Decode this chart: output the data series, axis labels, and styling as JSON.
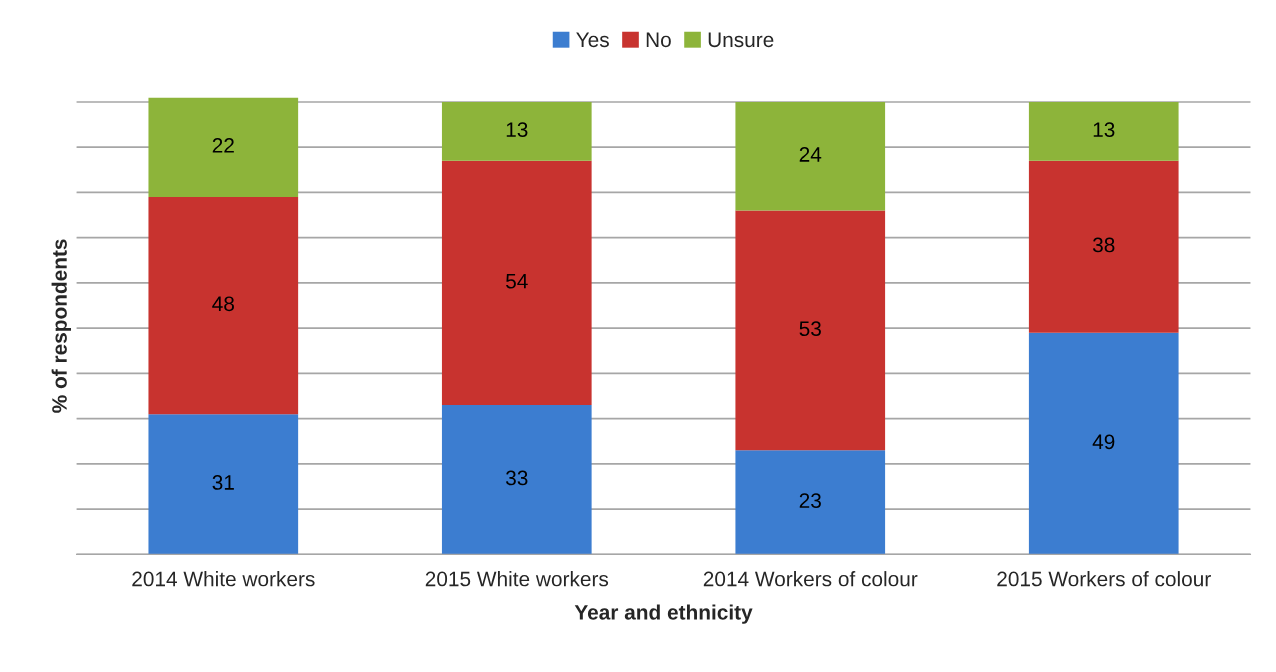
{
  "chart_data": {
    "type": "bar",
    "stacked": true,
    "xlabel": "Year and ethnicity",
    "ylabel": "% of respondents",
    "categories": [
      "2014 White workers",
      "2015 White workers",
      "2014 Workers of colour",
      "2015 Workers of colour"
    ],
    "series": [
      {
        "name": "Yes",
        "color": "#3c7dd0",
        "values": [
          31,
          33,
          23,
          49
        ]
      },
      {
        "name": "No",
        "color": "#c8332f",
        "values": [
          48,
          54,
          53,
          38
        ]
      },
      {
        "name": "Unsure",
        "color": "#8db43a",
        "values": [
          22,
          13,
          24,
          13
        ]
      }
    ],
    "ylim": [
      0,
      101
    ],
    "yticks": [
      {
        "value": 0,
        "label": null
      },
      {
        "value": 10,
        "label": null
      },
      {
        "value": 20,
        "label": null
      },
      {
        "value": 30,
        "label": null
      },
      {
        "value": 40,
        "label": null
      },
      {
        "value": 50,
        "label": null
      },
      {
        "value": 60,
        "label": null
      },
      {
        "value": 70,
        "label": null
      },
      {
        "value": 80,
        "label": null
      },
      {
        "value": 90,
        "label": null
      },
      {
        "value": 100,
        "label": null
      }
    ],
    "tick_labels": "x",
    "grid": "y",
    "legend": "top",
    "data_labels": true
  }
}
